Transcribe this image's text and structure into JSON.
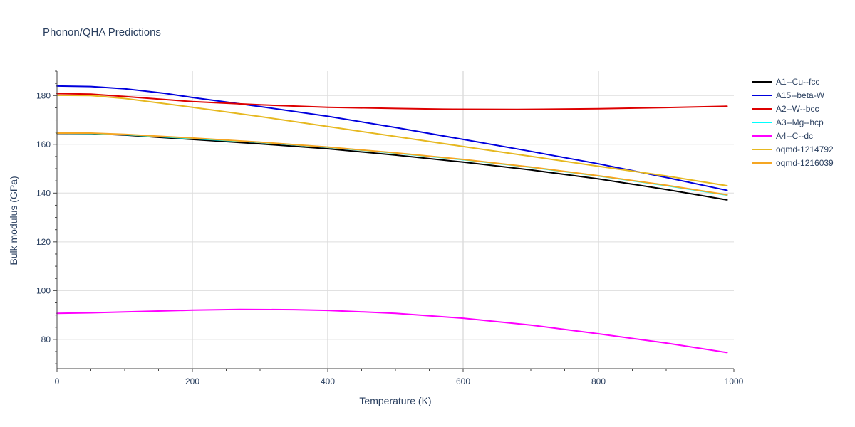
{
  "chart_data": {
    "type": "line",
    "title": "Phonon/QHA Predictions",
    "xlabel": "Temperature (K)",
    "ylabel": "Bulk modulus (GPa)",
    "xlim": [
      0,
      1000
    ],
    "ylim": [
      68,
      190
    ],
    "xticks": [
      0,
      200,
      400,
      600,
      800,
      1000
    ],
    "yticks": [
      80,
      100,
      120,
      140,
      160,
      180
    ],
    "grid": true,
    "legend_position": "top-right",
    "series": [
      {
        "name": "A1--Cu--fcc",
        "color": "#000000",
        "x": [
          0,
          50,
          100,
          200,
          300,
          400,
          500,
          600,
          700,
          800,
          900,
          990
        ],
        "y": [
          164.5,
          164.4,
          163.8,
          162.0,
          160.2,
          158.2,
          155.6,
          152.7,
          149.5,
          145.8,
          141.5,
          137.2
        ]
      },
      {
        "name": "A15--beta-W",
        "color": "#0000dd",
        "x": [
          0,
          50,
          100,
          160,
          200,
          300,
          400,
          500,
          600,
          700,
          800,
          900,
          990
        ],
        "y": [
          183.9,
          183.7,
          182.8,
          180.9,
          179.2,
          175.5,
          171.5,
          166.9,
          162.0,
          157.1,
          152.0,
          146.4,
          141.1
        ]
      },
      {
        "name": "A2--W--bcc",
        "color": "#dd0000",
        "x": [
          0,
          50,
          100,
          200,
          300,
          400,
          500,
          570,
          680,
          800,
          900,
          990
        ],
        "y": [
          180.8,
          180.6,
          179.6,
          177.5,
          176.2,
          175.2,
          174.7,
          174.4,
          174.3,
          174.6,
          175.1,
          175.6
        ]
      },
      {
        "name": "A3--Mg--hcp",
        "color": "#00ffff",
        "x": [
          0,
          50,
          100,
          200,
          300,
          400,
          500,
          600,
          700,
          800,
          900,
          990
        ],
        "y": [
          164.6,
          164.5,
          164.0,
          162.4,
          160.8,
          158.8,
          156.4,
          153.7,
          150.6,
          147.0,
          143.1,
          139.2
        ]
      },
      {
        "name": "A4--C--dc",
        "color": "#ff00ff",
        "x": [
          0,
          50,
          100,
          200,
          270,
          350,
          400,
          500,
          600,
          700,
          800,
          900,
          990
        ],
        "y": [
          90.7,
          90.9,
          91.3,
          92.0,
          92.3,
          92.2,
          91.9,
          90.7,
          88.7,
          85.9,
          82.3,
          78.5,
          74.6
        ]
      },
      {
        "name": "oqmd-1214792",
        "color": "#e6b820",
        "x": [
          0,
          50,
          100,
          200,
          300,
          400,
          500,
          600,
          700,
          800,
          900,
          990
        ],
        "y": [
          180.1,
          180.0,
          178.8,
          175.2,
          171.4,
          167.3,
          163.2,
          159.1,
          155.1,
          151.0,
          147.0,
          143.0
        ]
      },
      {
        "name": "oqmd-1216039",
        "color": "#f5a623",
        "x": [
          0,
          50,
          100,
          200,
          300,
          400,
          500,
          600,
          700,
          800,
          900,
          990
        ],
        "y": [
          164.6,
          164.6,
          164.1,
          162.6,
          160.9,
          158.9,
          156.5,
          153.8,
          150.7,
          147.1,
          143.2,
          139.3
        ]
      }
    ]
  }
}
